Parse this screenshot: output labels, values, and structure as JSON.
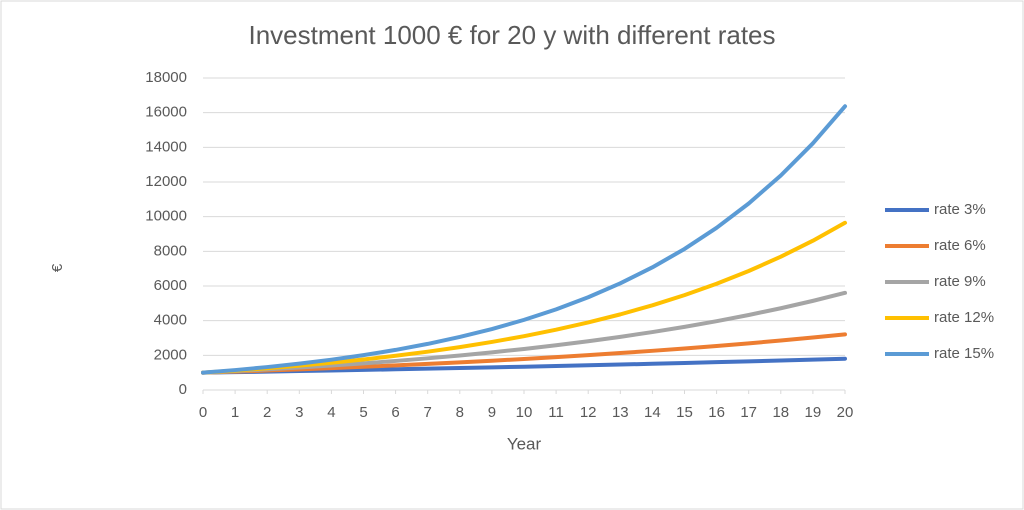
{
  "chart_data": {
    "type": "line",
    "title": "Investment 1000 € for 20 y with different rates",
    "x_label": "Year",
    "y_label": "€",
    "x": [
      0,
      1,
      2,
      3,
      4,
      5,
      6,
      7,
      8,
      9,
      10,
      11,
      12,
      13,
      14,
      15,
      16,
      17,
      18,
      19,
      20
    ],
    "xlim": [
      0,
      20
    ],
    "xticks": [
      0,
      1,
      2,
      3,
      4,
      5,
      6,
      7,
      8,
      9,
      10,
      11,
      12,
      13,
      14,
      15,
      16,
      17,
      18,
      19,
      20
    ],
    "ylim": [
      0,
      18000
    ],
    "yticks": [
      0,
      2000,
      4000,
      6000,
      8000,
      10000,
      12000,
      14000,
      16000,
      18000
    ],
    "grid": true,
    "legend": "right",
    "series": [
      {
        "name": "rate 3%",
        "color": "#4472c4",
        "values": [
          1000,
          1030,
          1061,
          1093,
          1126,
          1159,
          1194,
          1230,
          1267,
          1305,
          1344,
          1384,
          1426,
          1469,
          1513,
          1558,
          1605,
          1653,
          1702,
          1754,
          1806
        ]
      },
      {
        "name": "rate 6%",
        "color": "#ed7d31",
        "values": [
          1000,
          1060,
          1124,
          1191,
          1262,
          1338,
          1419,
          1504,
          1594,
          1689,
          1791,
          1898,
          2012,
          2133,
          2261,
          2397,
          2540,
          2693,
          2854,
          3026,
          3207
        ]
      },
      {
        "name": "rate 9%",
        "color": "#a5a5a5",
        "values": [
          1000,
          1090,
          1188,
          1295,
          1412,
          1539,
          1677,
          1828,
          1993,
          2172,
          2367,
          2580,
          2813,
          3066,
          3342,
          3642,
          3970,
          4328,
          4717,
          5142,
          5604
        ]
      },
      {
        "name": "rate 12%",
        "color": "#ffc000",
        "values": [
          1000,
          1120,
          1254,
          1405,
          1574,
          1762,
          1974,
          2211,
          2476,
          2773,
          3106,
          3479,
          3896,
          4363,
          4887,
          5474,
          6130,
          6866,
          7690,
          8613,
          9646
        ]
      },
      {
        "name": "rate 15%",
        "color": "#5b9bd5",
        "values": [
          1000,
          1150,
          1323,
          1521,
          1749,
          2011,
          2313,
          2660,
          3059,
          3518,
          4046,
          4652,
          5350,
          6153,
          7076,
          8137,
          9358,
          10761,
          12375,
          14232,
          16367
        ]
      }
    ]
  }
}
